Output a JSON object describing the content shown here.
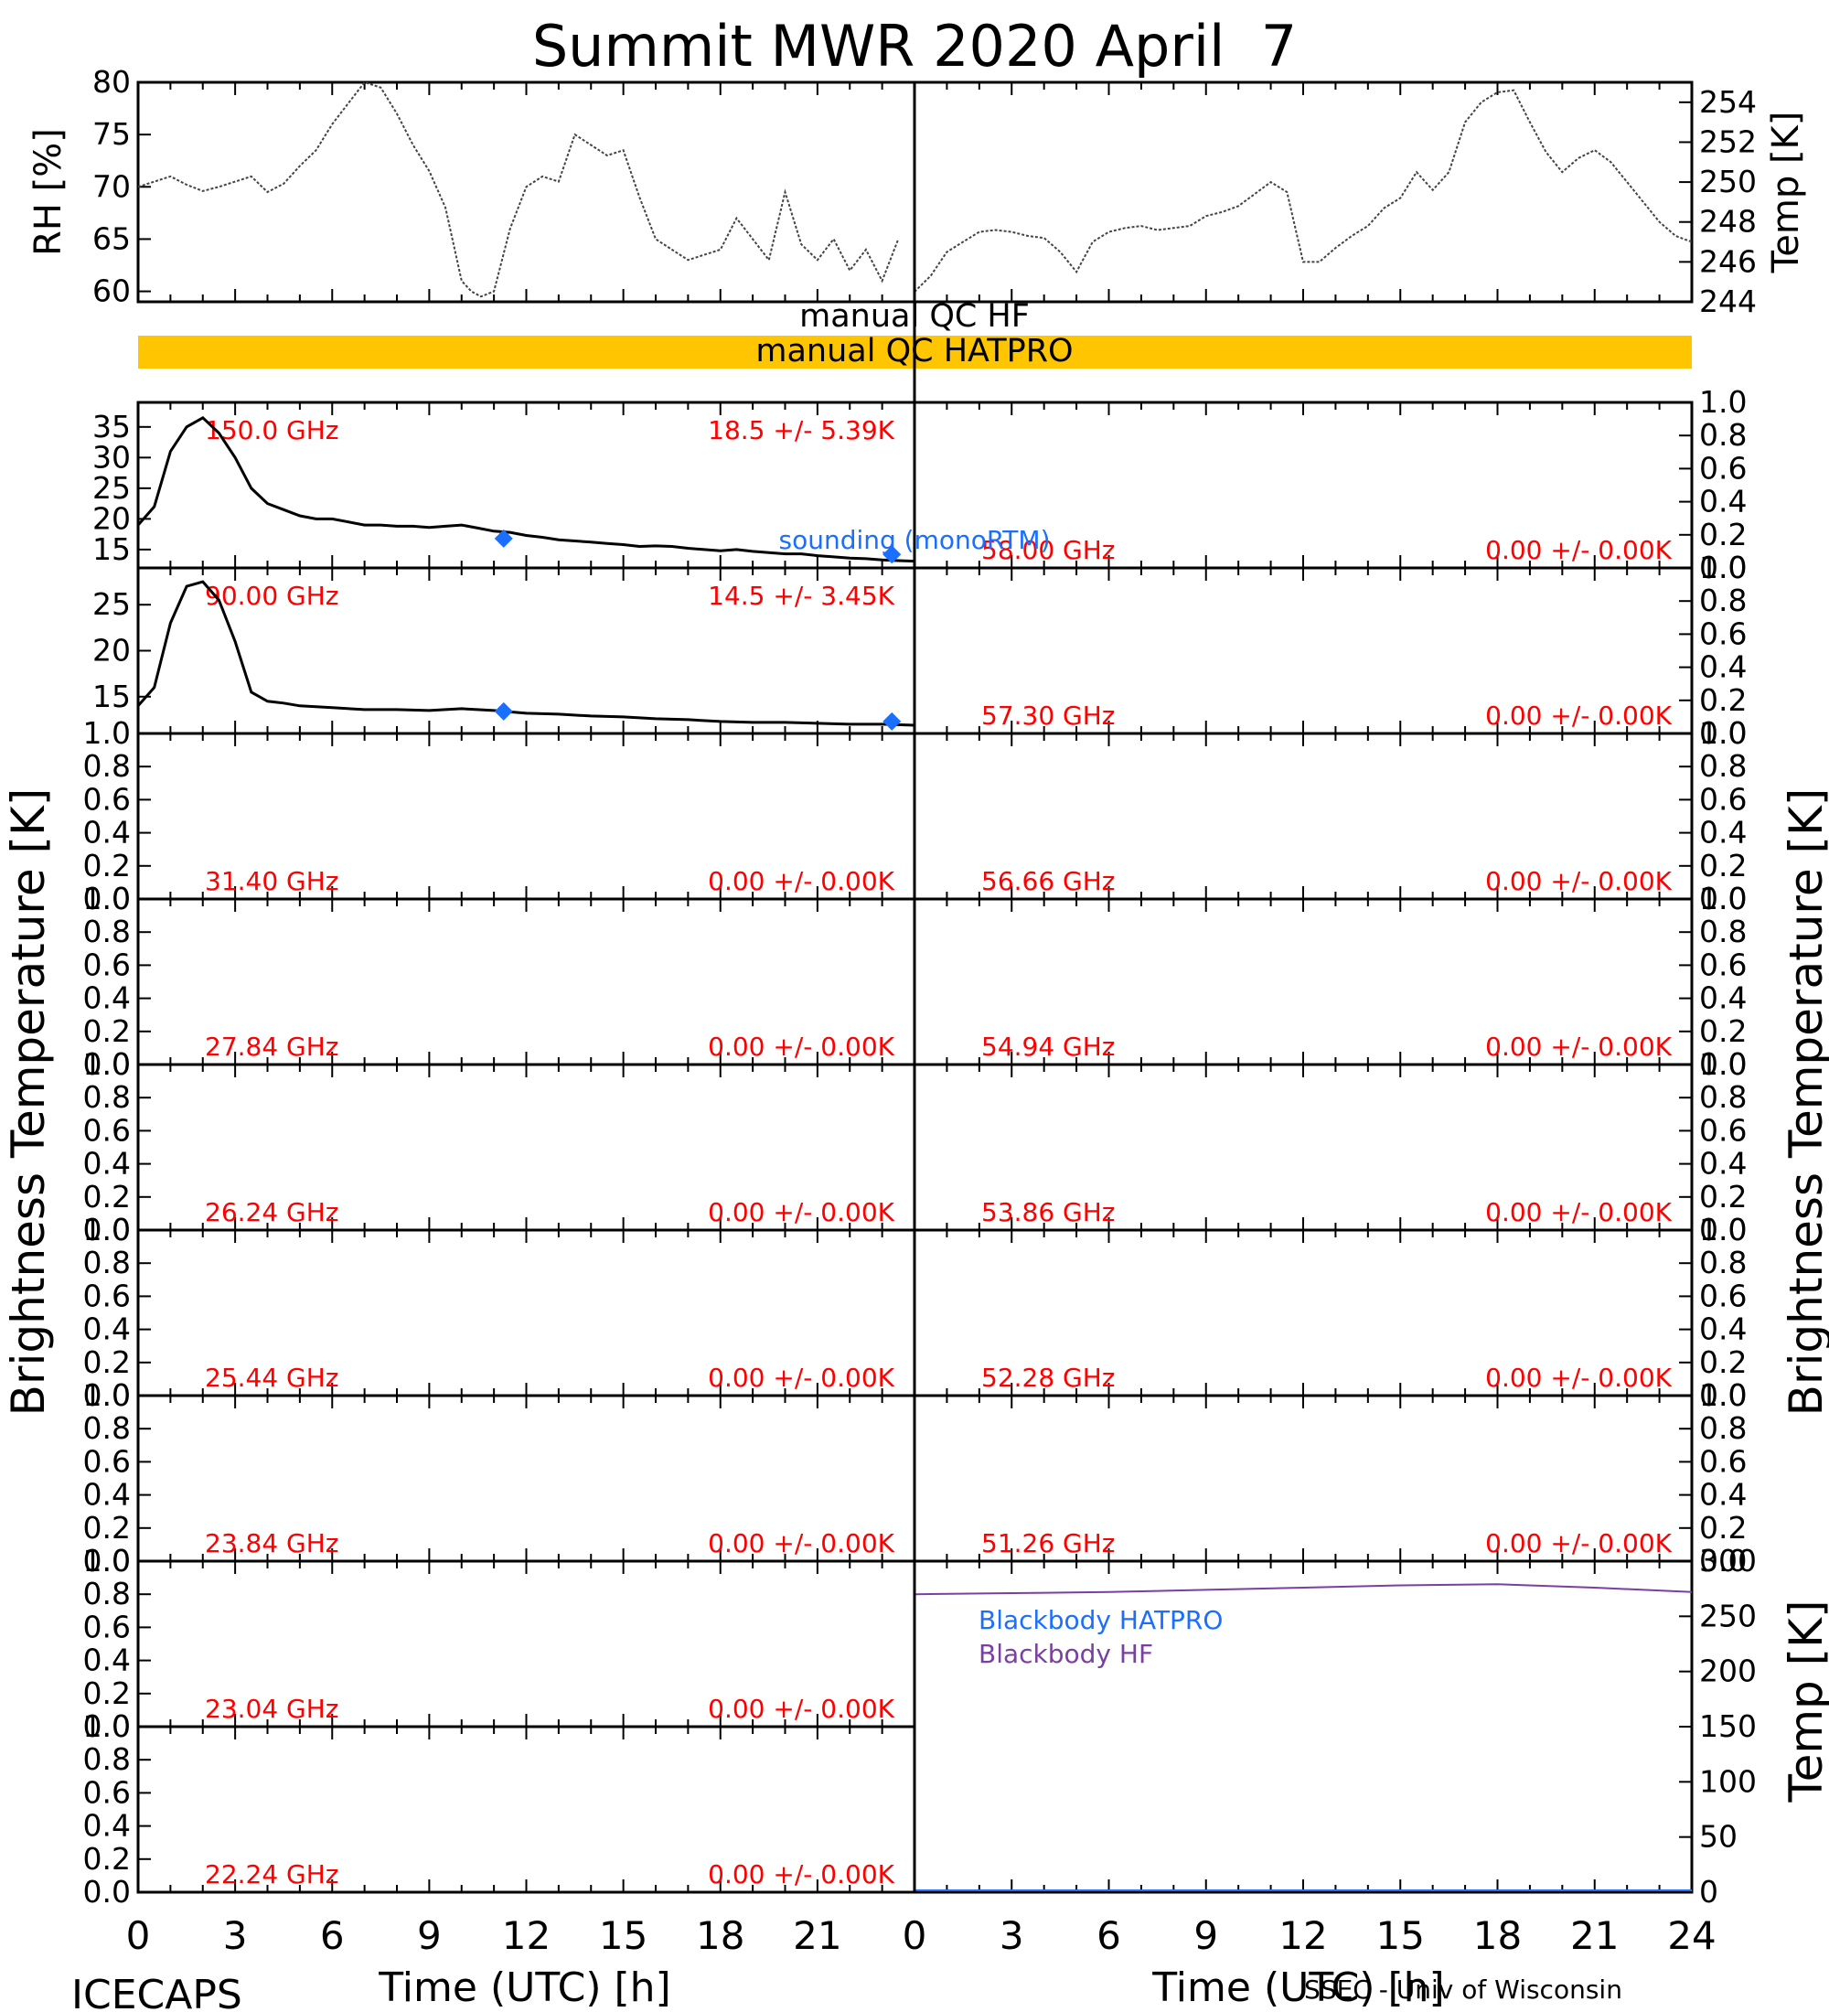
{
  "title": "Summit MWR 2020 April  7",
  "footer": {
    "left": "ICECAPS",
    "xlabel": "Time (UTC) [h]",
    "credit": "SSEC - Univ of Wisconsin"
  },
  "axis_labels": {
    "rh": "RH [%]",
    "temp_top": "Temp [K]",
    "tb_left": "Brightness Temperature [K]",
    "tb_right": "Brightness Temperature [K]",
    "temp_bb": "Temp [K]"
  },
  "qc": {
    "hf": "manual QC HF",
    "hatpro": "manual QC HATPRO",
    "hatpro_color": "#ffc600"
  },
  "legend": {
    "sounding": "sounding (monoRTM)",
    "bb_hatpro": "Blackbody HATPRO",
    "bb_hf": "Blackbody HF"
  },
  "colors": {
    "label_red": "#ff0000",
    "sounding_blue": "#1a6fff",
    "bb_purple": "#7a3fa0",
    "bb_hatpro_blue": "#1a6fff"
  },
  "chart_data": [
    {
      "id": "rh",
      "type": "line",
      "ylabel": "RH [%]",
      "xlim": [
        0,
        24
      ],
      "ylim": [
        59,
        80
      ],
      "yticks": [
        "60",
        "65",
        "70",
        "75",
        "80"
      ],
      "x": [
        0,
        0.5,
        1,
        1.5,
        2,
        2.5,
        3,
        3.5,
        4,
        4.5,
        5,
        5.5,
        6,
        6.5,
        7,
        7.5,
        8,
        8.5,
        9,
        9.5,
        10,
        10.3,
        10.6,
        11,
        11.5,
        12,
        12.5,
        13,
        13.5,
        14,
        14.5,
        15,
        15.5,
        16,
        16.5,
        17,
        17.5,
        18,
        18.5,
        19,
        19.5,
        20,
        20.5,
        21,
        21.5,
        22,
        22.5,
        23,
        23.5
      ],
      "y": [
        70,
        70.5,
        71,
        70.2,
        69.6,
        70,
        70.5,
        71,
        69.5,
        70.3,
        72,
        73.5,
        76,
        78,
        80,
        79.5,
        77,
        74,
        71.5,
        68,
        61,
        60,
        59.5,
        60,
        66,
        70,
        71,
        70.5,
        75,
        74,
        73,
        73.5,
        69,
        65,
        64,
        63,
        63.5,
        64,
        67,
        65,
        63,
        69.5,
        64.5,
        63,
        65,
        62,
        64,
        61,
        65
      ]
    },
    {
      "id": "temp_top",
      "type": "line",
      "ylabel": "Temp [K]",
      "xlim": [
        0,
        24
      ],
      "ylim": [
        244,
        255
      ],
      "yticks": [
        "244",
        "246",
        "248",
        "250",
        "252",
        "254"
      ],
      "x": [
        0,
        0.5,
        1,
        1.5,
        2,
        2.5,
        3,
        3.5,
        4,
        4.5,
        5,
        5.5,
        6,
        6.5,
        7,
        7.5,
        8,
        8.5,
        9,
        9.5,
        10,
        10.5,
        11,
        11.5,
        12,
        12.5,
        13,
        13.5,
        14,
        14.5,
        15,
        15.5,
        16,
        16.5,
        17,
        17.5,
        18,
        18.5,
        19,
        19.5,
        20,
        20.5,
        21,
        21.5,
        22,
        22.5,
        23,
        23.5,
        24
      ],
      "y": [
        244.5,
        245.3,
        246.5,
        247,
        247.5,
        247.6,
        247.5,
        247.3,
        247.2,
        246.5,
        245.5,
        247,
        247.5,
        247.7,
        247.8,
        247.6,
        247.7,
        247.8,
        248.3,
        248.5,
        248.8,
        249.4,
        250,
        249.5,
        246,
        246,
        246.7,
        247.3,
        247.8,
        248.7,
        249.2,
        250.5,
        249.6,
        250.5,
        253,
        254,
        254.5,
        254.6,
        253,
        251.5,
        250.5,
        251.2,
        251.6,
        251,
        250,
        249,
        248,
        247.3,
        247
      ]
    },
    {
      "id": "ch_150",
      "type": "line",
      "ylim": [
        12,
        39
      ],
      "yticks": [
        "15",
        "20",
        "25",
        "30",
        "35"
      ],
      "label_left": "150.0 GHz",
      "label_right": "18.5 +/-  5.39K",
      "x": [
        0,
        0.5,
        1,
        1.5,
        2,
        2.5,
        3,
        3.5,
        4,
        4.5,
        5,
        5.5,
        6,
        6.5,
        7,
        7.5,
        8,
        8.5,
        9,
        9.5,
        10,
        10.5,
        11,
        11.5,
        12,
        12.5,
        13,
        13.5,
        14,
        14.5,
        15,
        15.5,
        16,
        16.5,
        17,
        17.5,
        18,
        18.5,
        19,
        19.5,
        20,
        20.5,
        21,
        21.5,
        22,
        22.5,
        23,
        23.5,
        24
      ],
      "y": [
        19,
        22,
        31,
        35,
        36.5,
        34,
        30,
        25,
        22.5,
        21.5,
        20.5,
        20,
        20,
        19.5,
        19,
        19,
        18.8,
        18.8,
        18.6,
        18.8,
        19,
        18.5,
        18,
        17.8,
        17.3,
        17,
        16.6,
        16.4,
        16.2,
        16,
        15.8,
        15.5,
        15.6,
        15.5,
        15.2,
        15,
        14.8,
        15,
        14.7,
        14.5,
        14.3,
        14.3,
        14,
        13.8,
        13.6,
        13.5,
        13.3,
        13.2,
        13.1
      ],
      "sounding": {
        "x": [
          11.3,
          23.3
        ],
        "y": [
          16.8,
          14.2
        ]
      }
    },
    {
      "id": "ch_90",
      "type": "line",
      "ylim": [
        11,
        29
      ],
      "yticks": [
        "15",
        "20",
        "25"
      ],
      "label_left": "90.00 GHz",
      "label_right": "14.5 +/-  3.45K",
      "x": [
        0,
        0.5,
        1,
        1.5,
        2,
        2.5,
        3,
        3.5,
        4,
        4.5,
        5,
        6,
        7,
        8,
        9,
        10,
        11,
        12,
        13,
        14,
        15,
        16,
        17,
        18,
        19,
        20,
        21,
        22,
        23,
        24
      ],
      "y": [
        14,
        16,
        23,
        27,
        27.5,
        25.5,
        21,
        15.5,
        14.5,
        14.3,
        14,
        13.8,
        13.6,
        13.6,
        13.5,
        13.7,
        13.5,
        13.2,
        13.1,
        12.9,
        12.8,
        12.6,
        12.5,
        12.3,
        12.2,
        12.2,
        12.1,
        12,
        12,
        11.9
      ],
      "sounding": {
        "x": [
          11.3,
          23.3
        ],
        "y": [
          13.4,
          12.3
        ]
      }
    },
    {
      "id": "ch_5800",
      "type": "line",
      "ylim": [
        0,
        1
      ],
      "yticks": [
        "0.0",
        "0.2",
        "0.4",
        "0.6",
        "0.8",
        "1.0"
      ],
      "label_left": "58.00 GHz",
      "label_right": "0.00 +/-  0.00K"
    },
    {
      "id": "ch_5730",
      "type": "line",
      "ylim": [
        0,
        1
      ],
      "yticks": [
        "0.0",
        "0.2",
        "0.4",
        "0.6",
        "0.8",
        "1.0"
      ],
      "label_left": "57.30 GHz",
      "label_right": "0.00 +/-  0.00K"
    },
    {
      "id": "ch_3140",
      "type": "line",
      "ylim": [
        0,
        1
      ],
      "yticks": [
        "0.0",
        "0.2",
        "0.4",
        "0.6",
        "0.8",
        "1.0"
      ],
      "label_left": "31.40 GHz",
      "label_right": "0.00 +/-  0.00K"
    },
    {
      "id": "ch_5666",
      "type": "line",
      "ylim": [
        0,
        1
      ],
      "yticks": [
        "0.0",
        "0.2",
        "0.4",
        "0.6",
        "0.8",
        "1.0"
      ],
      "label_left": "56.66 GHz",
      "label_right": "0.00 +/-  0.00K"
    },
    {
      "id": "ch_2784",
      "type": "line",
      "ylim": [
        0,
        1
      ],
      "yticks": [
        "0.0",
        "0.2",
        "0.4",
        "0.6",
        "0.8",
        "1.0"
      ],
      "label_left": "27.84 GHz",
      "label_right": "0.00 +/-  0.00K"
    },
    {
      "id": "ch_5494",
      "type": "line",
      "ylim": [
        0,
        1
      ],
      "yticks": [
        "0.0",
        "0.2",
        "0.4",
        "0.6",
        "0.8",
        "1.0"
      ],
      "label_left": "54.94 GHz",
      "label_right": "0.00 +/-  0.00K"
    },
    {
      "id": "ch_2624",
      "type": "line",
      "ylim": [
        0,
        1
      ],
      "yticks": [
        "0.0",
        "0.2",
        "0.4",
        "0.6",
        "0.8",
        "1.0"
      ],
      "label_left": "26.24 GHz",
      "label_right": "0.00 +/-  0.00K"
    },
    {
      "id": "ch_5386",
      "type": "line",
      "ylim": [
        0,
        1
      ],
      "yticks": [
        "0.0",
        "0.2",
        "0.4",
        "0.6",
        "0.8",
        "1.0"
      ],
      "label_left": "53.86 GHz",
      "label_right": "0.00 +/-  0.00K"
    },
    {
      "id": "ch_2544",
      "type": "line",
      "ylim": [
        0,
        1
      ],
      "yticks": [
        "0.0",
        "0.2",
        "0.4",
        "0.6",
        "0.8",
        "1.0"
      ],
      "label_left": "25.44 GHz",
      "label_right": "0.00 +/-  0.00K"
    },
    {
      "id": "ch_5228",
      "type": "line",
      "ylim": [
        0,
        1
      ],
      "yticks": [
        "0.0",
        "0.2",
        "0.4",
        "0.6",
        "0.8",
        "1.0"
      ],
      "label_left": "52.28 GHz",
      "label_right": "0.00 +/-  0.00K"
    },
    {
      "id": "ch_2384",
      "type": "line",
      "ylim": [
        0,
        1
      ],
      "yticks": [
        "0.0",
        "0.2",
        "0.4",
        "0.6",
        "0.8",
        "1.0"
      ],
      "label_left": "23.84 GHz",
      "label_right": "0.00 +/-  0.00K"
    },
    {
      "id": "ch_5126",
      "type": "line",
      "ylim": [
        0,
        1
      ],
      "yticks": [
        "0.0",
        "0.2",
        "0.4",
        "0.6",
        "0.8",
        "1.0"
      ],
      "label_left": "51.26 GHz",
      "label_right": "0.00 +/-  0.00K"
    },
    {
      "id": "ch_2304",
      "type": "line",
      "ylim": [
        0,
        1
      ],
      "yticks": [
        "0.0",
        "0.2",
        "0.4",
        "0.6",
        "0.8",
        "1.0"
      ],
      "label_left": "23.04 GHz",
      "label_right": "0.00 +/-  0.00K"
    },
    {
      "id": "ch_2224",
      "type": "line",
      "ylim": [
        0,
        1
      ],
      "yticks": [
        "0.0",
        "0.2",
        "0.4",
        "0.6",
        "0.8",
        "1.0"
      ],
      "label_left": "22.24 GHz",
      "label_right": "0.00 +/-  0.00K"
    },
    {
      "id": "blackbody",
      "type": "line",
      "ylabel": "Temp [K]",
      "ylim": [
        0,
        300
      ],
      "yticks": [
        "0",
        "50",
        "100",
        "150",
        "200",
        "250",
        "300"
      ],
      "x": [
        0,
        3,
        6,
        9,
        12,
        15,
        18,
        21,
        24
      ],
      "y": [
        270,
        271,
        272,
        274,
        276,
        278,
        279,
        276,
        272
      ]
    }
  ],
  "xticks": [
    "0",
    "3",
    "6",
    "9",
    "12",
    "15",
    "18",
    "21",
    "24"
  ],
  "xticks_left": [
    "0",
    "3",
    "6",
    "9",
    "12",
    "15",
    "18",
    "21"
  ]
}
